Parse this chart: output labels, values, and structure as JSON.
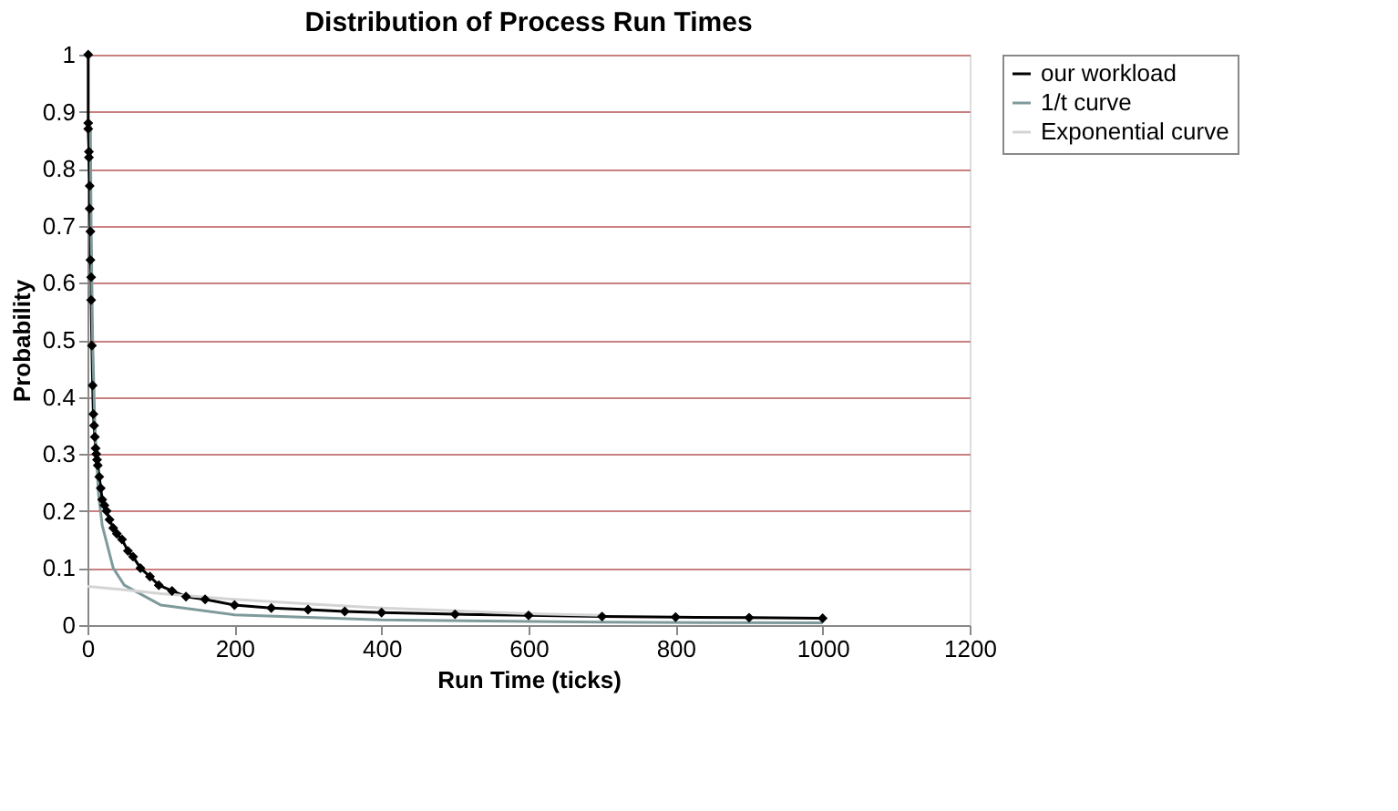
{
  "chart_data": {
    "type": "line",
    "title": "Distribution of Process Run Times",
    "xlabel": "Run Time (ticks)",
    "ylabel": "Probability",
    "xlim": [
      0,
      1200
    ],
    "xticks": [
      0,
      200,
      400,
      600,
      800,
      1000,
      1200
    ],
    "ylim": [
      0,
      1
    ],
    "yticks": [
      0,
      0.1,
      0.2,
      0.3,
      0.4,
      0.5,
      0.6,
      0.7,
      0.8,
      0.9,
      1
    ],
    "grid": "y",
    "legend": "right",
    "series": [
      {
        "name": "our workload",
        "color": "#000000",
        "marker": "diamond",
        "x": [
          1,
          1,
          1,
          2,
          2,
          3,
          3,
          4,
          4,
          5,
          5,
          6,
          7,
          8,
          9,
          10,
          11,
          12,
          13,
          14,
          16,
          18,
          20,
          23,
          26,
          30,
          35,
          40,
          47,
          55,
          62,
          72,
          85,
          97,
          115,
          134,
          160,
          200,
          250,
          300,
          350,
          400,
          500,
          600,
          700,
          800,
          900,
          1000
        ],
        "values": [
          1,
          0.88,
          0.87,
          0.83,
          0.82,
          0.77,
          0.73,
          0.69,
          0.64,
          0.61,
          0.57,
          0.49,
          0.42,
          0.37,
          0.35,
          0.33,
          0.31,
          0.3,
          0.29,
          0.28,
          0.26,
          0.24,
          0.22,
          0.21,
          0.2,
          0.185,
          0.17,
          0.16,
          0.15,
          0.13,
          0.12,
          0.1,
          0.085,
          0.07,
          0.06,
          0.05,
          0.045,
          0.035,
          0.03,
          0.027,
          0.024,
          0.022,
          0.019,
          0.017,
          0.015,
          0.014,
          0.013,
          0.012
        ]
      },
      {
        "name": "1/t curve",
        "color": "#7f9a9a",
        "x": [
          4,
          5,
          7,
          10,
          15,
          20,
          35,
          50,
          100,
          200,
          400,
          700,
          1000
        ],
        "values": [
          0.875,
          0.7,
          0.5,
          0.35,
          0.23,
          0.175,
          0.1,
          0.07,
          0.035,
          0.018,
          0.009,
          0.005,
          0.004
        ]
      },
      {
        "name": "Exponential curve",
        "color": "#d4d4d4",
        "x": [
          0,
          50,
          100,
          200,
          300,
          400,
          500,
          600,
          700
        ],
        "values": [
          0.068,
          0.062,
          0.055,
          0.045,
          0.037,
          0.03,
          0.025,
          0.02,
          0.017
        ]
      }
    ]
  }
}
